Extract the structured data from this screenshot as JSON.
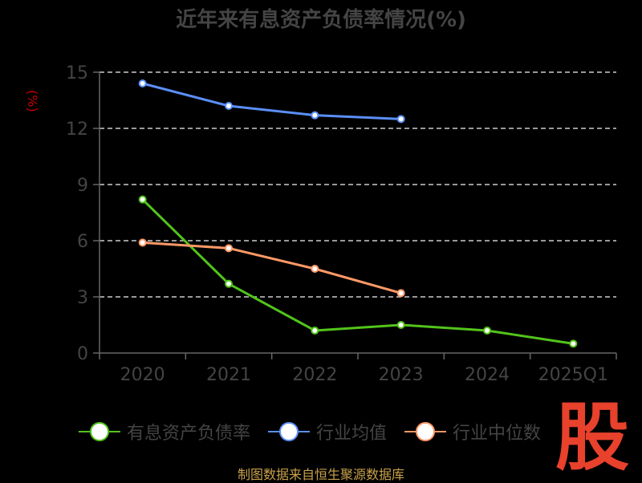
{
  "chart_data": {
    "type": "line",
    "title": "近年来有息资产负债率情况(%)",
    "ylabel": "(%)",
    "categories": [
      "2020",
      "2021",
      "2022",
      "2023",
      "2024",
      "2025Q1"
    ],
    "ylim": [
      0,
      15
    ],
    "yticks": [
      0,
      3,
      6,
      9,
      12,
      15
    ],
    "grid": true,
    "legend_position": "bottom",
    "series": [
      {
        "name": "有息资产负债率",
        "color": "#52c41a",
        "values": [
          8.2,
          3.7,
          1.2,
          1.5,
          1.2,
          0.5
        ]
      },
      {
        "name": "行业均值",
        "color": "#5b8ff9",
        "values": [
          14.4,
          13.2,
          12.7,
          12.5,
          null,
          null
        ]
      },
      {
        "name": "行业中位数",
        "color": "#ff9966",
        "values": [
          5.9,
          5.6,
          4.5,
          3.2,
          null,
          null
        ]
      }
    ]
  },
  "source": "制图数据来自恒生聚源数据库",
  "logo_text": "股"
}
